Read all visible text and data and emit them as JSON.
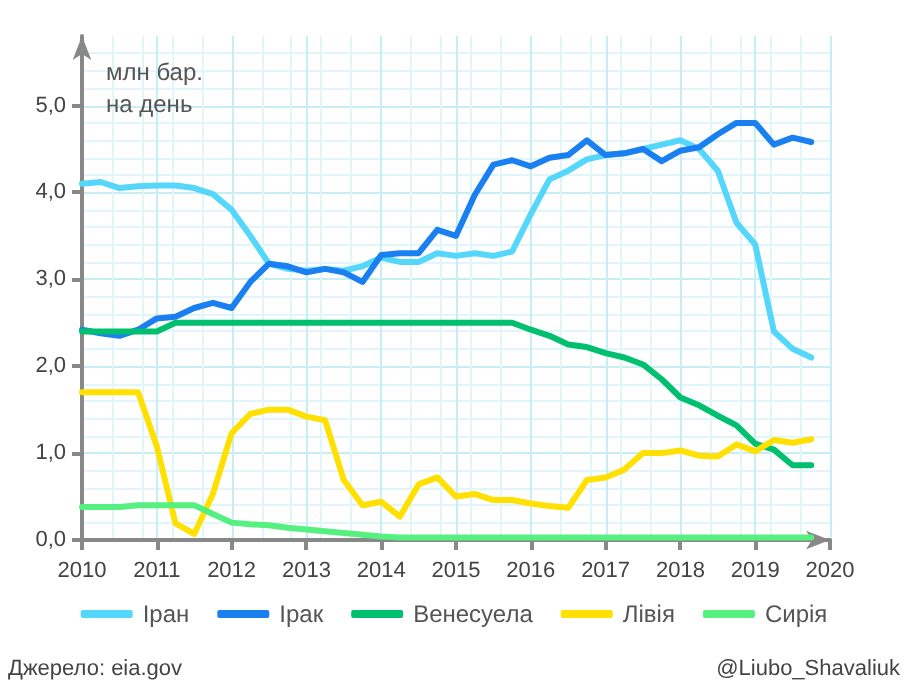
{
  "chart_data": {
    "type": "line",
    "ylabel": "млн бар.\nна день",
    "x": [
      2010,
      2010.25,
      2010.5,
      2010.75,
      2011,
      2011.25,
      2011.5,
      2011.75,
      2012,
      2012.25,
      2012.5,
      2012.75,
      2013,
      2013.25,
      2013.5,
      2013.75,
      2014,
      2014.25,
      2014.5,
      2014.75,
      2015,
      2015.25,
      2015.5,
      2015.75,
      2016,
      2016.25,
      2016.5,
      2016.75,
      2017,
      2017.25,
      2017.5,
      2017.75,
      2018,
      2018.25,
      2018.5,
      2018.75,
      2019,
      2019.25,
      2019.5,
      2019.75
    ],
    "series": [
      {
        "name": "Іран",
        "color": "#55d6fb",
        "values": [
          4.1,
          4.12,
          4.05,
          4.07,
          4.08,
          4.08,
          4.05,
          3.98,
          3.8,
          3.5,
          3.18,
          3.12,
          3.1,
          3.12,
          3.1,
          3.15,
          3.25,
          3.2,
          3.2,
          3.3,
          3.27,
          3.3,
          3.27,
          3.32,
          3.75,
          4.15,
          4.25,
          4.38,
          4.43,
          4.45,
          4.5,
          4.55,
          4.6,
          4.5,
          4.25,
          3.65,
          3.4,
          2.4,
          2.2,
          2.1
        ]
      },
      {
        "name": "Ірак",
        "color": "#1a7ff0",
        "values": [
          2.42,
          2.38,
          2.35,
          2.42,
          2.55,
          2.57,
          2.67,
          2.73,
          2.67,
          2.97,
          3.18,
          3.15,
          3.08,
          3.12,
          3.08,
          2.97,
          3.28,
          3.3,
          3.3,
          3.57,
          3.5,
          3.97,
          4.32,
          4.37,
          4.3,
          4.4,
          4.43,
          4.6,
          4.43,
          4.45,
          4.5,
          4.36,
          4.48,
          4.52,
          4.67,
          4.8,
          4.8,
          4.55,
          4.63,
          4.58
        ]
      },
      {
        "name": "Венесуела",
        "color": "#00c070",
        "values": [
          2.4,
          2.4,
          2.4,
          2.4,
          2.4,
          2.5,
          2.5,
          2.5,
          2.5,
          2.5,
          2.5,
          2.5,
          2.5,
          2.5,
          2.5,
          2.5,
          2.5,
          2.5,
          2.5,
          2.5,
          2.5,
          2.5,
          2.5,
          2.5,
          2.42,
          2.35,
          2.25,
          2.22,
          2.15,
          2.1,
          2.02,
          1.85,
          1.64,
          1.55,
          1.43,
          1.32,
          1.11,
          1.04,
          0.86,
          0.86
        ]
      },
      {
        "name": "Лівія",
        "color": "#ffe000",
        "values": [
          1.7,
          1.7,
          1.7,
          1.7,
          1.08,
          0.19,
          0.07,
          0.53,
          1.23,
          1.45,
          1.5,
          1.5,
          1.42,
          1.38,
          0.69,
          0.4,
          0.44,
          0.27,
          0.64,
          0.72,
          0.5,
          0.53,
          0.46,
          0.46,
          0.42,
          0.39,
          0.37,
          0.69,
          0.72,
          0.81,
          1.0,
          1.0,
          1.03,
          0.97,
          0.96,
          1.1,
          1.02,
          1.15,
          1.12,
          1.16
        ]
      },
      {
        "name": "Сирія",
        "color": "#55f080",
        "values": [
          0.38,
          0.38,
          0.38,
          0.4,
          0.4,
          0.4,
          0.4,
          0.3,
          0.2,
          0.18,
          0.17,
          0.14,
          0.12,
          0.1,
          0.08,
          0.06,
          0.04,
          0.03,
          0.03,
          0.03,
          0.03,
          0.03,
          0.03,
          0.03,
          0.03,
          0.03,
          0.03,
          0.03,
          0.03,
          0.03,
          0.03,
          0.03,
          0.03,
          0.03,
          0.03,
          0.03,
          0.03,
          0.03,
          0.03,
          0.03
        ]
      }
    ],
    "xlim": [
      2010,
      2020
    ],
    "xticks": [
      2010,
      2011,
      2012,
      2013,
      2014,
      2015,
      2016,
      2017,
      2018,
      2019,
      2020
    ],
    "ylim": [
      0,
      5.8
    ],
    "yticks": [
      {
        "value": 0,
        "label": "0,0"
      },
      {
        "value": 1,
        "label": "1,0"
      },
      {
        "value": 2,
        "label": "2,0"
      },
      {
        "value": 3,
        "label": "3,0"
      },
      {
        "value": 4,
        "label": "4,0"
      },
      {
        "value": 5,
        "label": "5,0"
      }
    ],
    "grid": true,
    "legend": "bottom",
    "marker": "none",
    "line_style": "solid",
    "annotations": [
      "Джерело: eia.gov",
      "@Liubo_Shavaliuk"
    ]
  }
}
